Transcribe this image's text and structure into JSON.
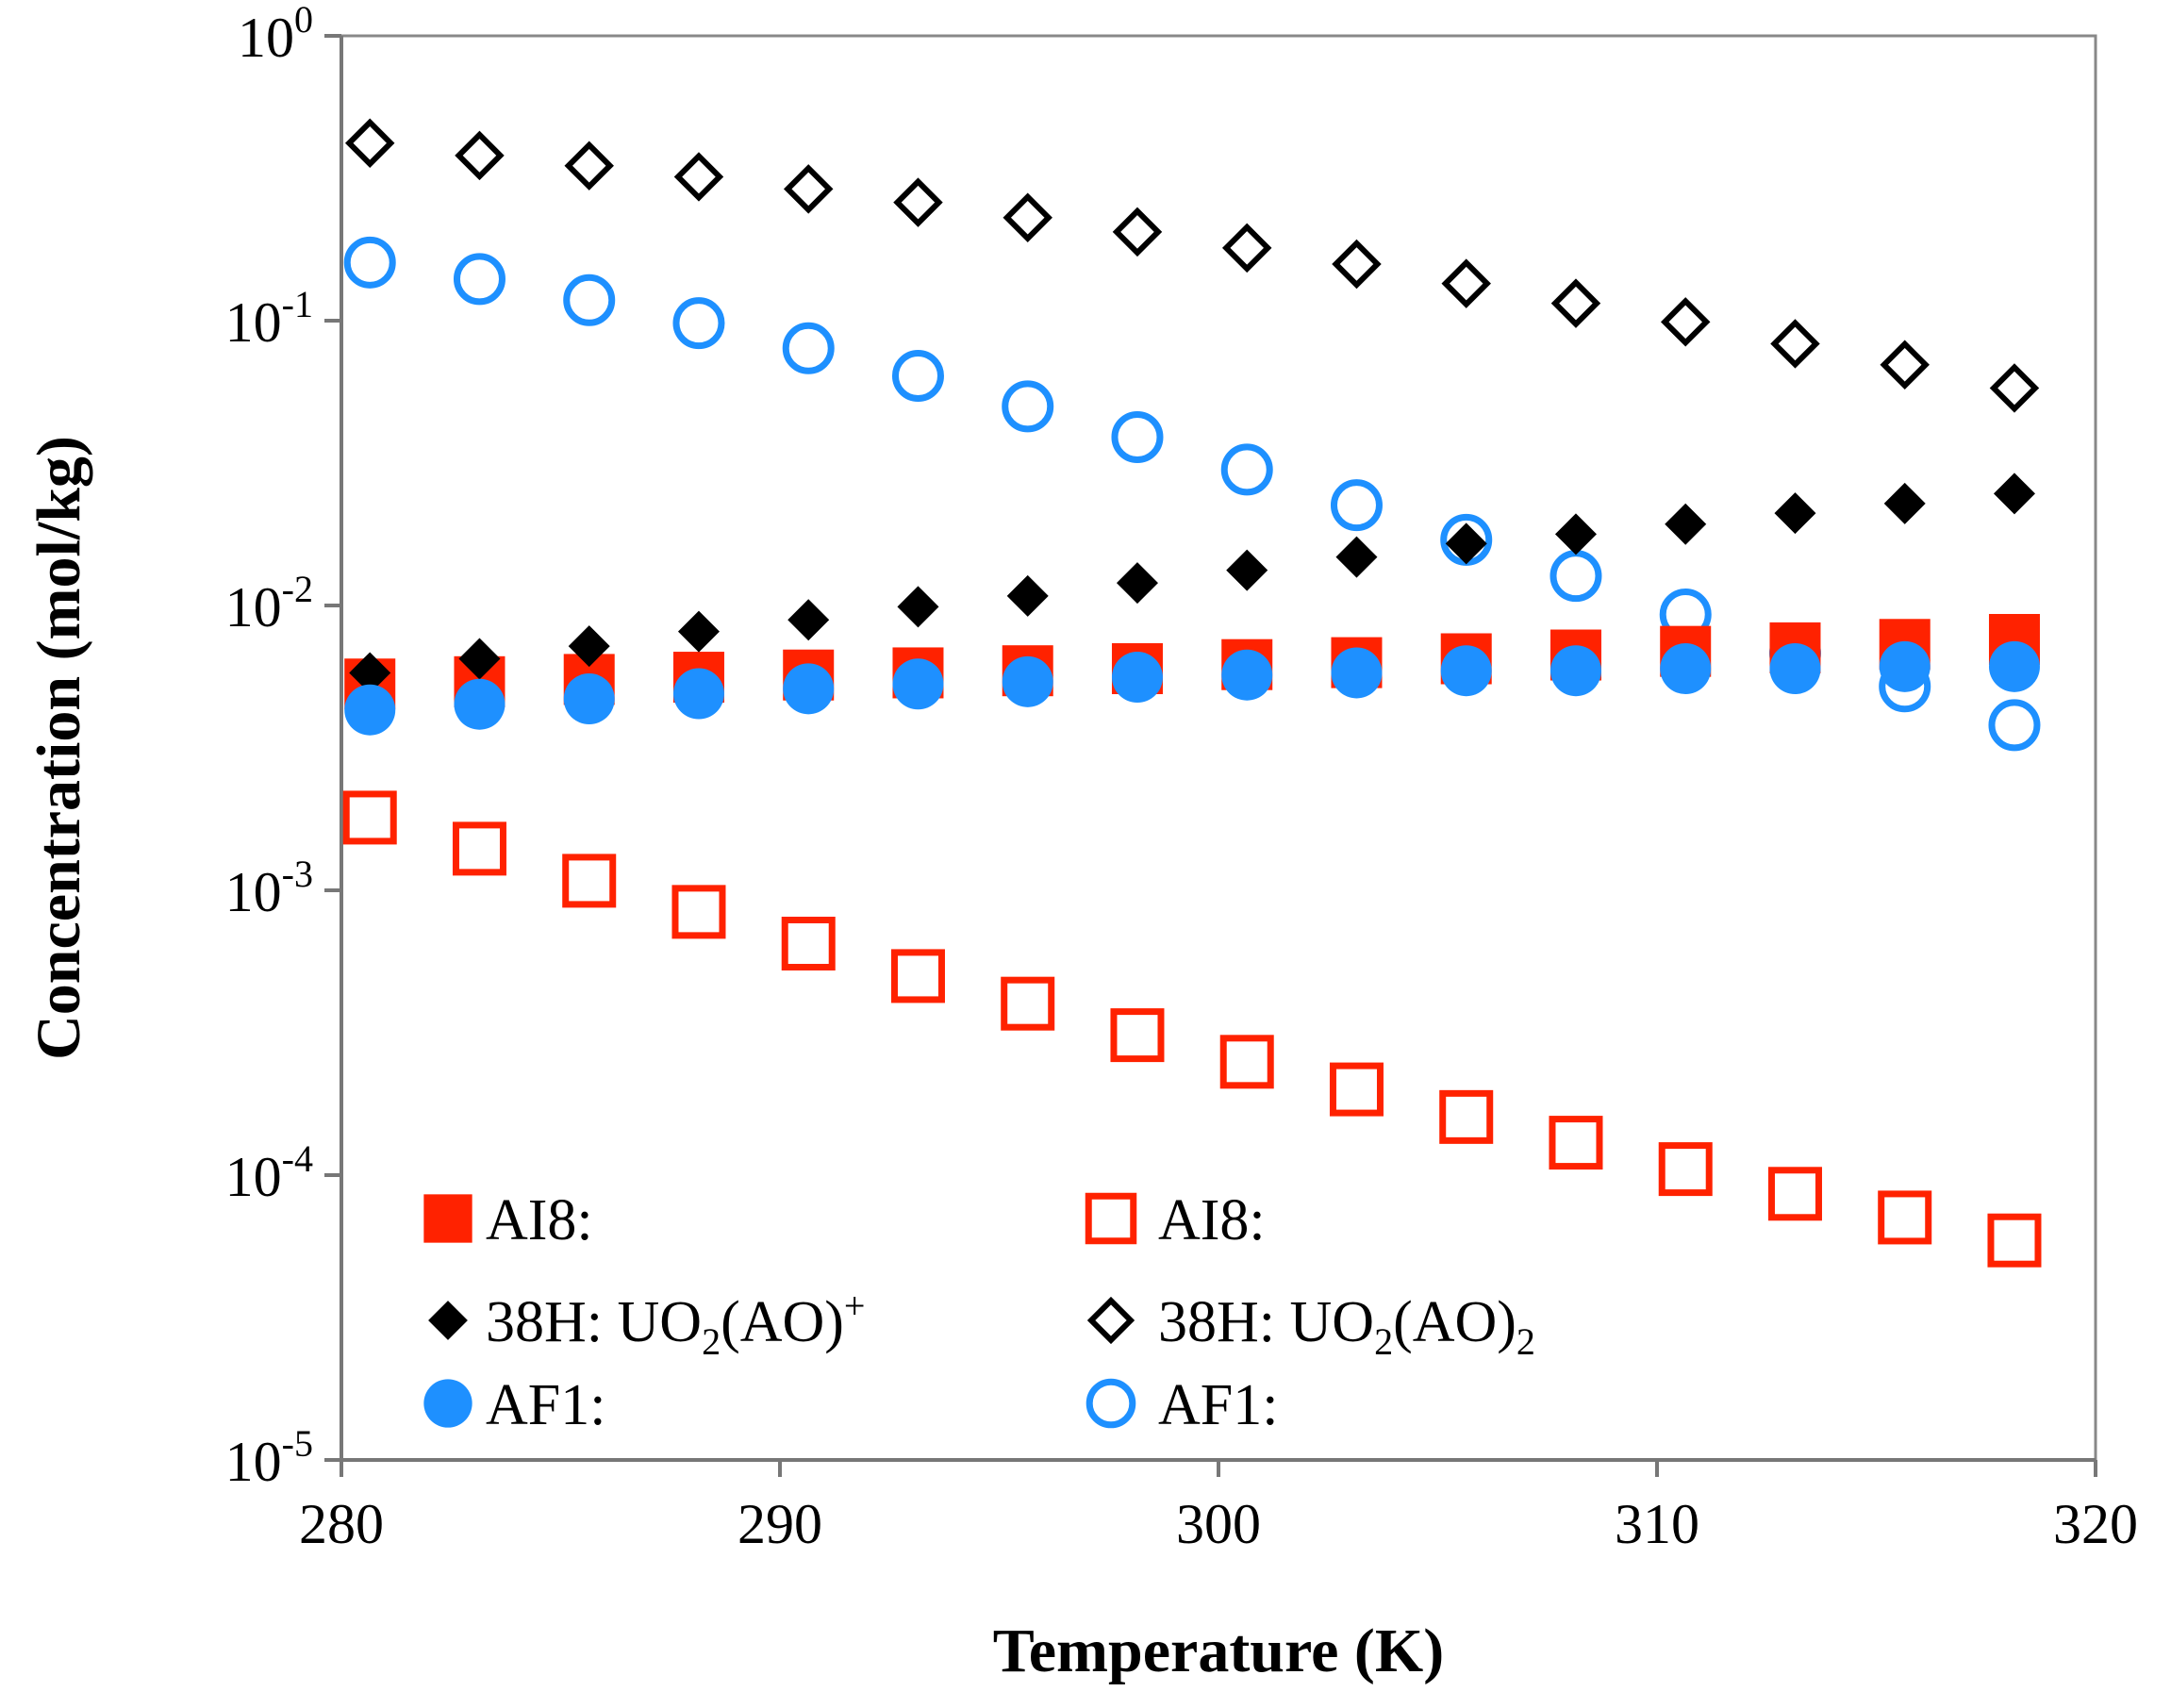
{
  "chart_data": {
    "type": "scatter",
    "title": "",
    "xlabel": "Temperature (K)",
    "ylabel": "Concentration (mol/kg)",
    "xlim": [
      280,
      320
    ],
    "ylim": [
      1e-05,
      1
    ],
    "yscale": "log",
    "x_ticks": [
      "280",
      "290",
      "300",
      "310",
      "320"
    ],
    "y_ticks": [
      {
        "base": "10",
        "exp": "0",
        "value": 1
      },
      {
        "base": "10",
        "exp": "-1",
        "value": 0.1
      },
      {
        "base": "10",
        "exp": "-2",
        "value": 0.01
      },
      {
        "base": "10",
        "exp": "-3",
        "value": 0.001
      },
      {
        "base": "10",
        "exp": "-4",
        "value": 0.0001
      },
      {
        "base": "10",
        "exp": "-5",
        "value": 1e-05
      }
    ],
    "grid": false,
    "legend_position": "bottom-left",
    "x": [
      280.65,
      283.15,
      285.65,
      288.15,
      290.65,
      293.15,
      295.65,
      298.15,
      300.65,
      303.15,
      305.65,
      308.15,
      310.65,
      313.15,
      315.65,
      318.15
    ],
    "series": [
      {
        "name": "AI8: filled",
        "marker": "square",
        "filled": true,
        "color": "#ff2200",
        "values": [
          0.0053,
          0.0054,
          0.0055,
          0.0056,
          0.0057,
          0.0058,
          0.0059,
          0.006,
          0.0062,
          0.0063,
          0.0065,
          0.0067,
          0.0069,
          0.0071,
          0.0073,
          0.0076
        ]
      },
      {
        "name": "AI8: open",
        "marker": "square",
        "filled": false,
        "color": "#ff2200",
        "values": [
          0.0018,
          0.0014,
          0.00108,
          0.00084,
          0.00065,
          0.0005,
          0.0004,
          0.00031,
          0.00025,
          0.0002,
          0.00016,
          0.00013,
          0.000105,
          8.6e-05,
          7.1e-05,
          5.9e-05
        ]
      },
      {
        "name": "38H: UO2(AO)+",
        "marker": "diamond",
        "filled": true,
        "color": "#000000",
        "values": [
          0.0058,
          0.0065,
          0.0072,
          0.0081,
          0.0089,
          0.0099,
          0.0108,
          0.012,
          0.0133,
          0.0148,
          0.0165,
          0.0178,
          0.0193,
          0.0211,
          0.0228,
          0.0247
        ]
      },
      {
        "name": "38H: UO2(AO)2",
        "marker": "diamond",
        "filled": false,
        "color": "#000000",
        "values": [
          0.42,
          0.38,
          0.35,
          0.32,
          0.29,
          0.26,
          0.23,
          0.205,
          0.18,
          0.158,
          0.135,
          0.115,
          0.099,
          0.083,
          0.07,
          0.058
        ]
      },
      {
        "name": "AF1: filled",
        "marker": "circle",
        "filled": true,
        "color": "#1e90ff",
        "values": [
          0.0043,
          0.0045,
          0.0047,
          0.0049,
          0.0051,
          0.0053,
          0.0054,
          0.0056,
          0.0057,
          0.0058,
          0.0059,
          0.0059,
          0.006,
          0.006,
          0.0061,
          0.0061
        ]
      },
      {
        "name": "AF1: open",
        "marker": "circle",
        "filled": false,
        "color": "#1e90ff",
        "values": [
          0.16,
          0.14,
          0.118,
          0.098,
          0.08,
          0.064,
          0.05,
          0.039,
          0.03,
          0.0225,
          0.017,
          0.0127,
          0.0093,
          0.0068,
          0.0052,
          0.0038
        ]
      }
    ],
    "legend": [
      {
        "series": 0,
        "label": "AI8:"
      },
      {
        "series": 1,
        "label": "AI8:"
      },
      {
        "series": 2,
        "label": "38H:  UO",
        "sub": "2",
        "tail": "(AO)",
        "sup": "+"
      },
      {
        "series": 3,
        "label": "38H:  UO",
        "sub": "2",
        "tail": "(AO)",
        "sub2": "2"
      },
      {
        "series": 4,
        "label": "AF1:"
      },
      {
        "series": 5,
        "label": "AF1:"
      }
    ]
  }
}
